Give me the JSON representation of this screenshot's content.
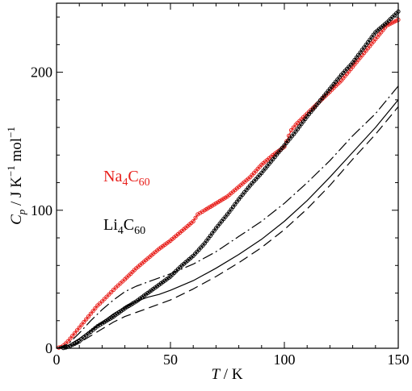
{
  "chart_data": {
    "type": "scatter",
    "xlabel": {
      "main": "T",
      "sep": " / ",
      "unit": "K"
    },
    "ylabel": {
      "main": "C",
      "sub": "p",
      "sep": " / J K",
      "sup1": "−1",
      "unit2": " mol",
      "sup2": "−1"
    },
    "xlim": [
      0,
      150
    ],
    "ylim": [
      0,
      250
    ],
    "x_ticks": [
      0,
      50,
      100,
      150
    ],
    "y_ticks": [
      0,
      100,
      200
    ],
    "grid": false,
    "colors": {
      "na": "#e8201c",
      "li": "#000000",
      "axis": "#000000"
    },
    "labels": [
      {
        "series": "na4c60",
        "base": "Na",
        "sub1": "4",
        "mid": "C",
        "sub2": "60"
      },
      {
        "series": "li4c60",
        "base": "Li",
        "sub1": "4",
        "mid": "C",
        "sub2": "60"
      }
    ],
    "series": [
      {
        "key": "na4c60",
        "color": "#e8201c",
        "style": "markers+line",
        "points": [
          [
            1,
            0.5
          ],
          [
            2,
            1
          ],
          [
            3,
            2
          ],
          [
            4,
            3.5
          ],
          [
            5,
            5
          ],
          [
            6,
            7
          ],
          [
            7,
            9
          ],
          [
            8,
            11
          ],
          [
            9,
            13
          ],
          [
            10,
            15
          ],
          [
            12,
            19
          ],
          [
            14,
            23
          ],
          [
            16,
            27
          ],
          [
            18,
            31
          ],
          [
            20,
            34
          ],
          [
            23,
            39
          ],
          [
            26,
            44
          ],
          [
            30,
            50
          ],
          [
            35,
            58
          ],
          [
            40,
            65
          ],
          [
            45,
            72
          ],
          [
            50,
            78
          ],
          [
            55,
            85
          ],
          [
            60,
            92
          ],
          [
            62,
            97
          ],
          [
            65,
            100
          ],
          [
            70,
            105
          ],
          [
            75,
            110
          ],
          [
            80,
            117
          ],
          [
            85,
            124
          ],
          [
            90,
            133
          ],
          [
            95,
            140
          ],
          [
            100,
            146
          ],
          [
            103,
            158
          ],
          [
            105,
            162
          ],
          [
            110,
            170
          ],
          [
            115,
            178
          ],
          [
            120,
            186
          ],
          [
            125,
            194
          ],
          [
            130,
            204
          ],
          [
            135,
            214
          ],
          [
            140,
            224
          ],
          [
            145,
            234
          ],
          [
            150,
            238
          ]
        ]
      },
      {
        "key": "li4c60",
        "color": "#000000",
        "style": "markers+line",
        "points": [
          [
            3,
            0.2
          ],
          [
            5,
            1
          ],
          [
            7,
            2.5
          ],
          [
            10,
            5
          ],
          [
            12,
            8
          ],
          [
            15,
            12
          ],
          [
            18,
            16
          ],
          [
            20,
            18
          ],
          [
            25,
            23
          ],
          [
            30,
            29
          ],
          [
            35,
            34
          ],
          [
            40,
            40
          ],
          [
            45,
            46
          ],
          [
            50,
            52
          ],
          [
            55,
            60
          ],
          [
            60,
            67
          ],
          [
            65,
            76
          ],
          [
            70,
            87
          ],
          [
            75,
            97
          ],
          [
            80,
            108
          ],
          [
            85,
            118
          ],
          [
            90,
            127
          ],
          [
            95,
            137
          ],
          [
            100,
            147
          ],
          [
            105,
            157
          ],
          [
            110,
            168
          ],
          [
            115,
            178
          ],
          [
            120,
            188
          ],
          [
            125,
            198
          ],
          [
            130,
            207
          ],
          [
            135,
            218
          ],
          [
            140,
            229
          ],
          [
            145,
            236
          ],
          [
            150,
            244
          ]
        ]
      },
      {
        "key": "model-dashdot",
        "color": "#000000",
        "style": "dashdot",
        "points": [
          [
            0,
            0
          ],
          [
            5,
            3
          ],
          [
            10,
            11
          ],
          [
            15,
            20
          ],
          [
            20,
            28
          ],
          [
            25,
            35
          ],
          [
            30,
            41
          ],
          [
            35,
            45
          ],
          [
            40,
            48
          ],
          [
            45,
            51
          ],
          [
            50,
            54
          ],
          [
            60,
            61
          ],
          [
            70,
            70
          ],
          [
            80,
            81
          ],
          [
            90,
            92
          ],
          [
            100,
            105
          ],
          [
            110,
            120
          ],
          [
            120,
            136
          ],
          [
            130,
            154
          ],
          [
            140,
            170
          ],
          [
            150,
            190
          ]
        ]
      },
      {
        "key": "model-solid",
        "color": "#000000",
        "style": "solid",
        "points": [
          [
            0,
            0
          ],
          [
            5,
            2
          ],
          [
            10,
            7
          ],
          [
            15,
            13
          ],
          [
            20,
            19
          ],
          [
            25,
            25
          ],
          [
            30,
            30
          ],
          [
            35,
            34
          ],
          [
            40,
            37
          ],
          [
            45,
            39
          ],
          [
            50,
            42
          ],
          [
            60,
            49
          ],
          [
            70,
            58
          ],
          [
            80,
            68
          ],
          [
            90,
            79
          ],
          [
            100,
            92
          ],
          [
            110,
            107
          ],
          [
            120,
            124
          ],
          [
            130,
            142
          ],
          [
            140,
            160
          ],
          [
            150,
            180
          ]
        ]
      },
      {
        "key": "model-dashed",
        "color": "#000000",
        "style": "dashed",
        "points": [
          [
            0,
            0
          ],
          [
            5,
            1
          ],
          [
            10,
            4
          ],
          [
            15,
            9
          ],
          [
            20,
            14
          ],
          [
            25,
            19
          ],
          [
            30,
            23
          ],
          [
            35,
            26
          ],
          [
            40,
            29
          ],
          [
            45,
            32
          ],
          [
            50,
            35
          ],
          [
            60,
            43
          ],
          [
            70,
            52
          ],
          [
            80,
            62
          ],
          [
            90,
            73
          ],
          [
            100,
            86
          ],
          [
            110,
            101
          ],
          [
            120,
            118
          ],
          [
            130,
            137
          ],
          [
            140,
            155
          ],
          [
            150,
            175
          ]
        ]
      }
    ]
  }
}
